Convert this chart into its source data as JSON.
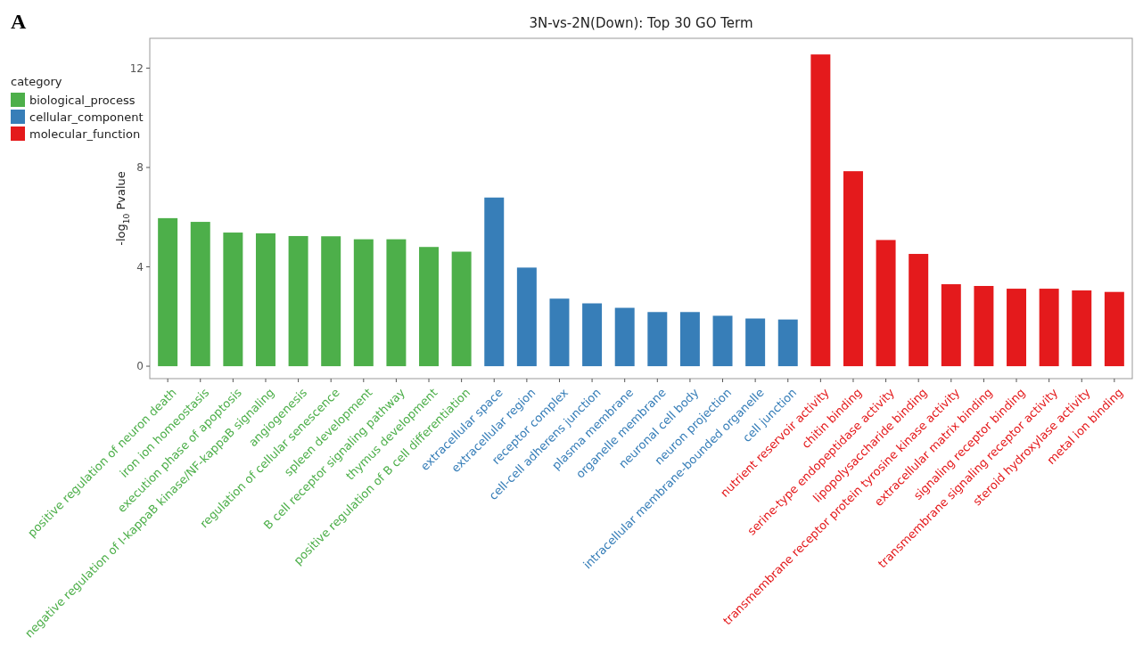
{
  "chart_data": {
    "type": "bar",
    "title": "3N-vs-2N(Down): Top 30 GO Term",
    "ylabel": "-log$_{10}$ Pvalue",
    "legend_title": "category",
    "annotations": [
      "A"
    ],
    "categories": [
      "positive regulation of neuron death",
      "iron ion homeostasis",
      "execution phase of apoptosis",
      "negative regulation of I-kappaB kinase/NF-kappaB signaling",
      "angiogenesis",
      "regulation of cellular senescence",
      "spleen development",
      "B cell receptor signaling pathway",
      "thymus development",
      "positive regulation of B cell differentiation",
      "extracellular space",
      "extracellular region",
      "receptor complex",
      "cell-cell adherens junction",
      "plasma membrane",
      "organelle membrane",
      "neuronal cell body",
      "neuron projection",
      "intracellular membrane-bounded organelle",
      "cell junction",
      "nutrient reservoir activity",
      "chitin binding",
      "serine-type endopeptidase activity",
      "lipopolysaccharide binding",
      "transmembrane receptor protein tyrosine kinase activity",
      "extracellular matrix binding",
      "signaling receptor binding",
      "transmembrane signaling receptor activity",
      "steroid hydroxylase activity",
      "metal ion binding"
    ],
    "series": [
      {
        "name": "biological_process",
        "color": "#4daf4a",
        "values": [
          5.96,
          5.81,
          5.38,
          5.35,
          5.24,
          5.23,
          5.11,
          5.11,
          4.8,
          4.61,
          null,
          null,
          null,
          null,
          null,
          null,
          null,
          null,
          null,
          null,
          null,
          null,
          null,
          null,
          null,
          null,
          null,
          null,
          null,
          null
        ]
      },
      {
        "name": "cellular_component",
        "color": "#377eb8",
        "values": [
          null,
          null,
          null,
          null,
          null,
          null,
          null,
          null,
          null,
          null,
          6.79,
          3.97,
          2.72,
          2.53,
          2.35,
          2.18,
          2.18,
          2.03,
          1.92,
          1.88,
          null,
          null,
          null,
          null,
          null,
          null,
          null,
          null,
          null,
          null
        ]
      },
      {
        "name": "molecular_function",
        "color": "#e41a1c",
        "values": [
          null,
          null,
          null,
          null,
          null,
          null,
          null,
          null,
          null,
          null,
          null,
          null,
          null,
          null,
          null,
          null,
          null,
          null,
          null,
          null,
          12.55,
          7.85,
          5.08,
          4.52,
          3.3,
          3.23,
          3.12,
          3.12,
          3.05,
          2.99
        ]
      }
    ],
    "ylim": [
      -0.5,
      13.2
    ],
    "yticks": [
      0,
      4,
      8,
      12
    ],
    "legend": "top left",
    "grid": false
  }
}
